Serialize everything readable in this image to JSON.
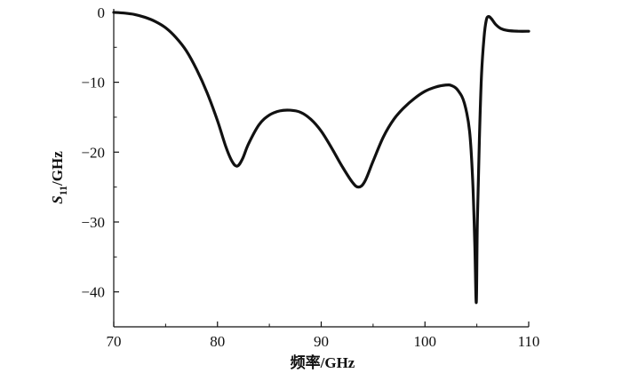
{
  "chart_data": {
    "type": "line",
    "title": "",
    "xlabel": "频率/GHz",
    "ylabel": {
      "symbol": "S",
      "subscript": "11",
      "unit": "/GHz"
    },
    "xlim": [
      70,
      110
    ],
    "ylim": [
      -45,
      0.5
    ],
    "xticks": [
      70,
      80,
      90,
      100,
      110
    ],
    "xtick_labels": [
      "70",
      "80",
      "90",
      "100",
      "110"
    ],
    "yticks": [
      0,
      -10,
      -20,
      -30,
      -40
    ],
    "ytick_labels": [
      "0",
      "−10",
      "−20",
      "−30",
      "−40"
    ],
    "grid": false,
    "line_color": "#111111",
    "series": [
      {
        "points": [
          [
            70,
            0.0
          ],
          [
            71,
            -0.1
          ],
          [
            72,
            -0.3
          ],
          [
            73,
            -0.7
          ],
          [
            74,
            -1.3
          ],
          [
            75,
            -2.2
          ],
          [
            76,
            -3.6
          ],
          [
            77,
            -5.5
          ],
          [
            78,
            -8.2
          ],
          [
            79,
            -11.5
          ],
          [
            80,
            -15.5
          ],
          [
            80.8,
            -19.2
          ],
          [
            81.4,
            -21.3
          ],
          [
            81.9,
            -22.0
          ],
          [
            82.4,
            -21.0
          ],
          [
            83,
            -18.8
          ],
          [
            84,
            -16.1
          ],
          [
            85,
            -14.7
          ],
          [
            86,
            -14.1
          ],
          [
            87,
            -14.0
          ],
          [
            88,
            -14.3
          ],
          [
            89,
            -15.3
          ],
          [
            90,
            -17.0
          ],
          [
            91,
            -19.4
          ],
          [
            92,
            -22.0
          ],
          [
            93,
            -24.3
          ],
          [
            93.6,
            -25.0
          ],
          [
            94.2,
            -24.2
          ],
          [
            95,
            -21.3
          ],
          [
            96,
            -17.8
          ],
          [
            97,
            -15.3
          ],
          [
            98,
            -13.6
          ],
          [
            99,
            -12.3
          ],
          [
            100,
            -11.3
          ],
          [
            101,
            -10.7
          ],
          [
            102,
            -10.4
          ],
          [
            102.6,
            -10.5
          ],
          [
            103.2,
            -11.2
          ],
          [
            103.8,
            -13.0
          ],
          [
            104.3,
            -17.0
          ],
          [
            104.6,
            -24.0
          ],
          [
            104.8,
            -33.0
          ],
          [
            104.95,
            -41.5
          ],
          [
            105.05,
            -30.0
          ],
          [
            105.25,
            -18.0
          ],
          [
            105.45,
            -9.0
          ],
          [
            105.7,
            -3.5
          ],
          [
            105.9,
            -1.2
          ],
          [
            106.1,
            -0.6
          ],
          [
            106.4,
            -0.9
          ],
          [
            106.8,
            -1.7
          ],
          [
            107.3,
            -2.3
          ],
          [
            108,
            -2.6
          ],
          [
            109,
            -2.7
          ],
          [
            110,
            -2.7
          ]
        ]
      }
    ]
  }
}
